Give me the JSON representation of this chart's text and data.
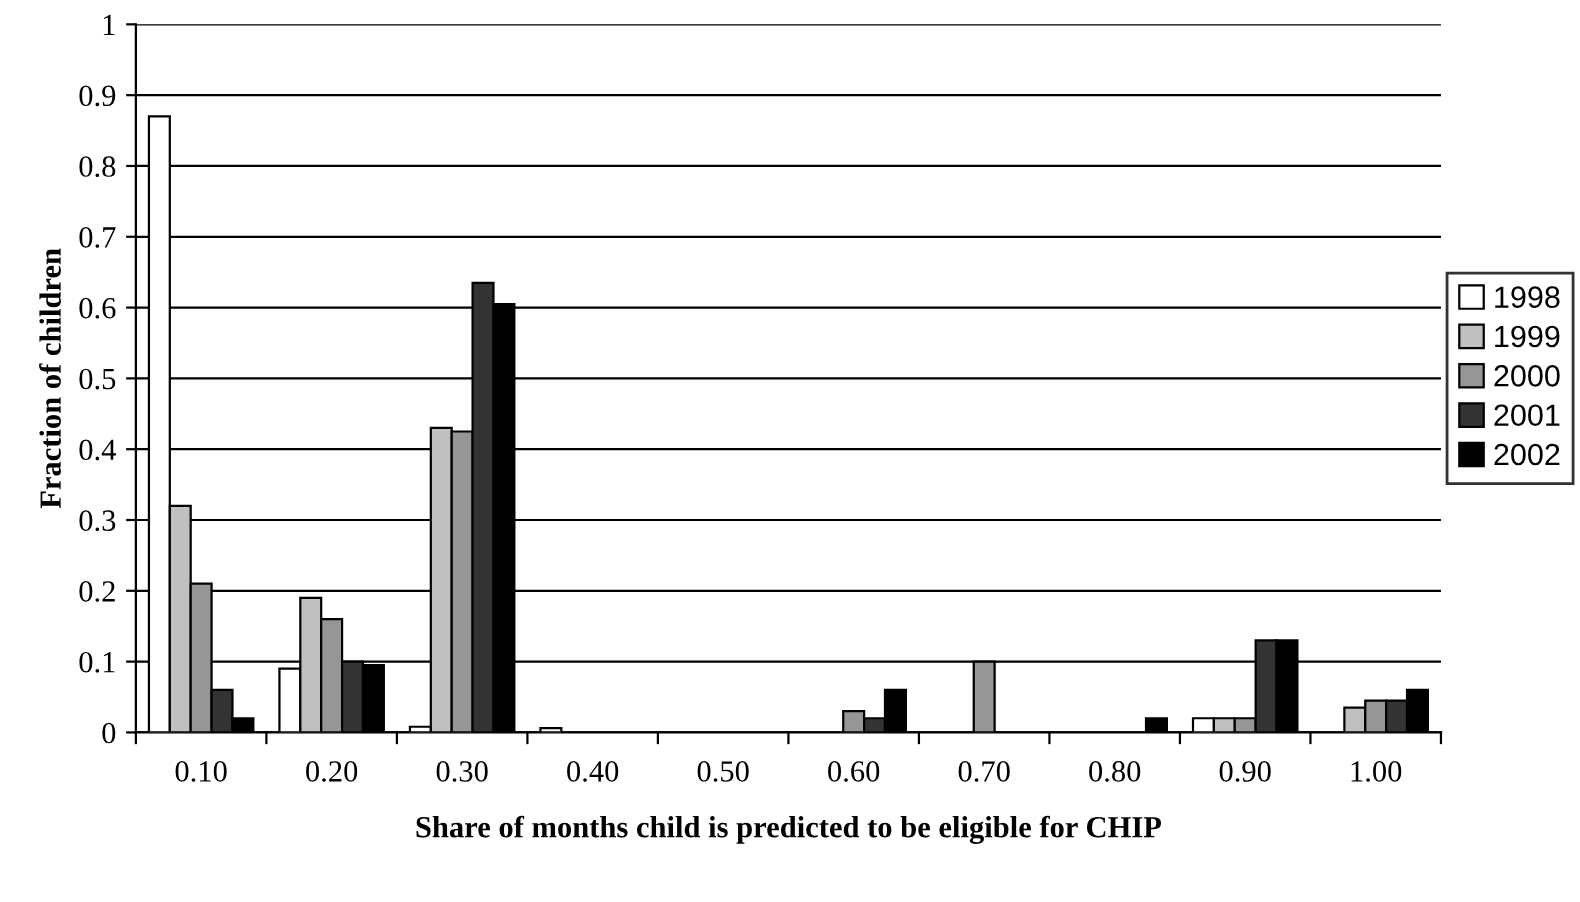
{
  "chart_data": {
    "type": "bar",
    "xlabel": "Share of months child is predicted to be eligible for CHIP",
    "ylabel": "Fraction of children",
    "categories": [
      "0.10",
      "0.20",
      "0.30",
      "0.40",
      "0.50",
      "0.60",
      "0.70",
      "0.80",
      "0.90",
      "1.00"
    ],
    "series": [
      {
        "name": "1998",
        "color": "#ffffff",
        "values": [
          0.87,
          0.09,
          0.008,
          0.006,
          null,
          null,
          null,
          null,
          0.02,
          null
        ]
      },
      {
        "name": "1999",
        "color": "#c0c0c0",
        "values": [
          0.32,
          0.19,
          0.43,
          null,
          null,
          null,
          null,
          null,
          0.02,
          0.035
        ]
      },
      {
        "name": "2000",
        "color": "#969696",
        "values": [
          0.21,
          0.16,
          0.425,
          null,
          null,
          0.03,
          0.1,
          null,
          0.02,
          0.045
        ]
      },
      {
        "name": "2001",
        "color": "#333333",
        "values": [
          0.06,
          0.1,
          0.635,
          null,
          null,
          0.02,
          null,
          null,
          0.13,
          0.045
        ]
      },
      {
        "name": "2002",
        "color": "#000000",
        "values": [
          0.02,
          0.095,
          0.605,
          null,
          null,
          0.06,
          null,
          0.02,
          0.13,
          0.06
        ]
      }
    ],
    "ylim": [
      0,
      1
    ],
    "yticks": [
      0,
      0.1,
      0.2,
      0.3,
      0.4,
      0.5,
      0.6,
      0.7,
      0.8,
      0.9,
      1
    ],
    "grid": "y",
    "legend": "right"
  }
}
